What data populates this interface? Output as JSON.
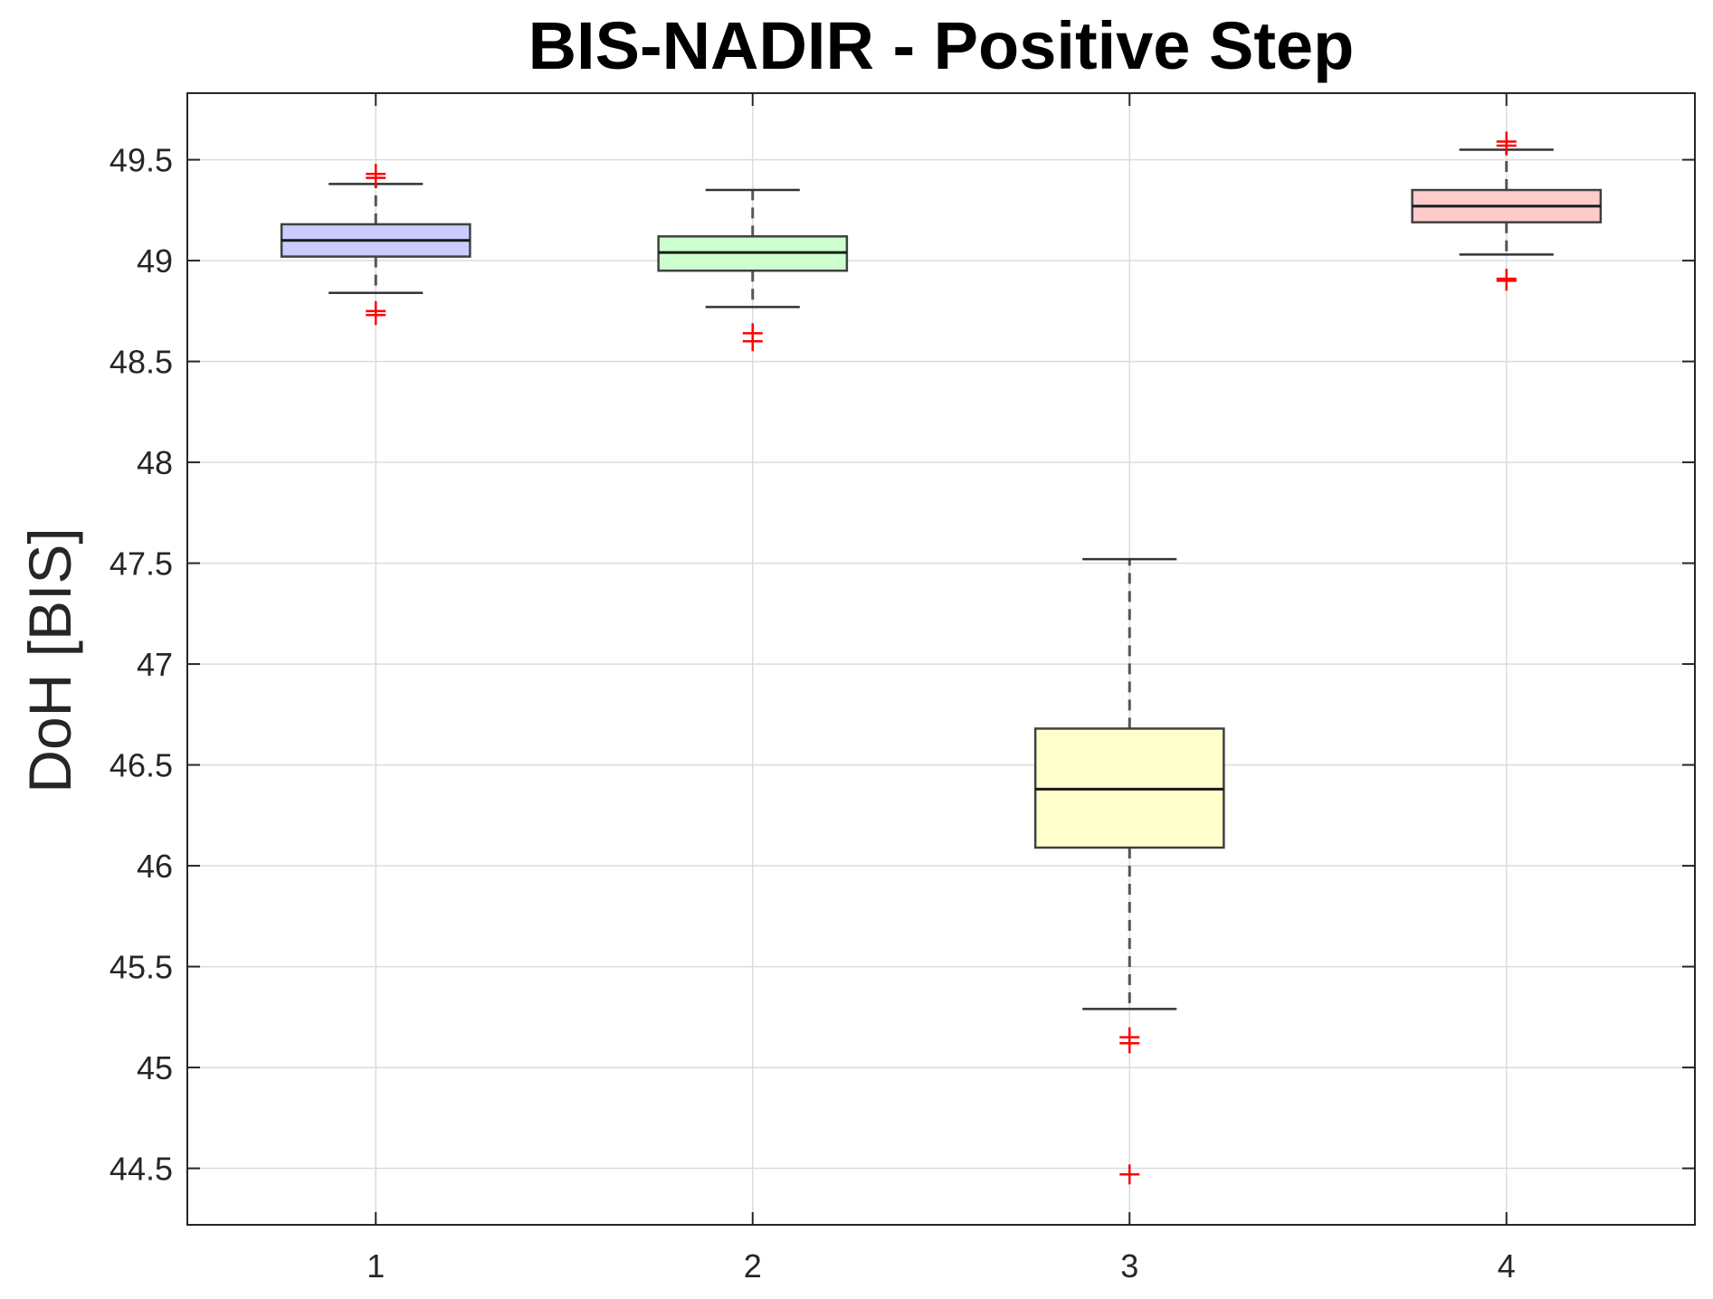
{
  "chart_data": {
    "type": "boxplot",
    "title": "BIS-NADIR - Positive Step",
    "xlabel": "",
    "ylabel": "DoH [BIS]",
    "categories": [
      "1",
      "2",
      "3",
      "4"
    ],
    "xlim": [
      0.5,
      4.5
    ],
    "ylim": [
      44.22,
      49.83
    ],
    "yticks": [
      44.5,
      45,
      45.5,
      46,
      46.5,
      47,
      47.5,
      48,
      48.5,
      49,
      49.5
    ],
    "ytick_labels": [
      "44.5",
      "45",
      "45.5",
      "46",
      "46.5",
      "47",
      "47.5",
      "48",
      "48.5",
      "49",
      "49.5"
    ],
    "grid": true,
    "boxes": [
      {
        "label": "1",
        "whisker_low": 48.84,
        "q1": 49.02,
        "median": 49.1,
        "q3": 49.18,
        "whisker_high": 49.38,
        "outliers": [
          48.73,
          48.75,
          49.41,
          49.43
        ],
        "color": "#ccccff"
      },
      {
        "label": "2",
        "whisker_low": 48.77,
        "q1": 48.95,
        "median": 49.04,
        "q3": 49.12,
        "whisker_high": 49.35,
        "outliers": [
          48.6,
          48.64
        ],
        "color": "#ccffcc"
      },
      {
        "label": "3",
        "whisker_low": 45.29,
        "q1": 46.09,
        "median": 46.38,
        "q3": 46.68,
        "whisker_high": 47.52,
        "outliers": [
          44.47,
          45.12,
          45.15
        ],
        "color": "#ffffcc"
      },
      {
        "label": "4",
        "whisker_low": 49.03,
        "q1": 49.19,
        "median": 49.27,
        "q3": 49.35,
        "whisker_high": 49.55,
        "outliers": [
          48.9,
          48.91,
          49.57,
          49.59
        ],
        "color": "#ffcccc"
      }
    ]
  }
}
